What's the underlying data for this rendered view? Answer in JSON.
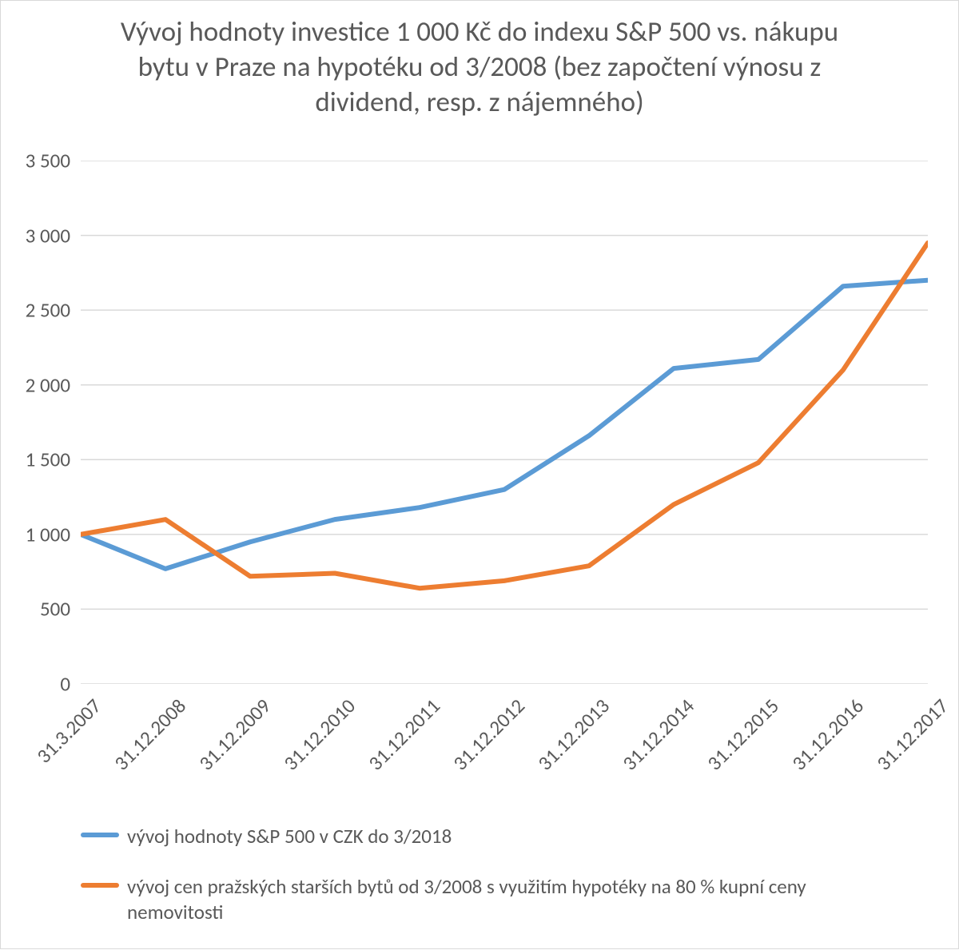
{
  "chart": {
    "type": "line",
    "title": "Vývoj hodnoty investice 1 000 Kč do indexu S&P 500 vs. nákupu bytu v Praze na hypotéku od 3/2008 (bez započtení výnosu z dividend, resp. z nájemného)",
    "title_fontsize": 35,
    "title_color": "#595959",
    "background_color": "#ffffff",
    "border_color": "#d9d9d9",
    "grid_color": "#d9d9d9",
    "axis_line_color": "#d9d9d9",
    "tick_label_color": "#595959",
    "tick_label_fontsize": 25,
    "x_labels": [
      "31.3.2007",
      "31.12.2008",
      "31.12.2009",
      "31.12.2010",
      "31.12.2011",
      "31.12.2012",
      "31.12.2013",
      "31.12.2014",
      "31.12.2015",
      "31.12.2016",
      "31.12.2017"
    ],
    "x_label_rotation": -45,
    "ylim": [
      0,
      3500
    ],
    "ytick_step": 500,
    "y_tick_labels": [
      "0",
      "500",
      "1 000",
      "1 500",
      "2 000",
      "2 500",
      "3 000",
      "3 500"
    ],
    "line_width": 6,
    "series": [
      {
        "name": "vývoj hodnoty S&P 500 v CZK do 3/2018",
        "color": "#5b9bd5",
        "values": [
          1000,
          770,
          950,
          1100,
          1180,
          1300,
          1660,
          2110,
          2170,
          2660,
          2700
        ]
      },
      {
        "name": "vývoj cen pražských starších bytů od 3/2008 s využitím hypotéky na 80 % kupní ceny nemovitosti",
        "color": "#ed7d31",
        "values": [
          1000,
          1100,
          720,
          740,
          640,
          690,
          790,
          1200,
          1480,
          2100,
          2950
        ]
      }
    ],
    "legend_fontsize": 25,
    "legend_text_color": "#595959"
  }
}
